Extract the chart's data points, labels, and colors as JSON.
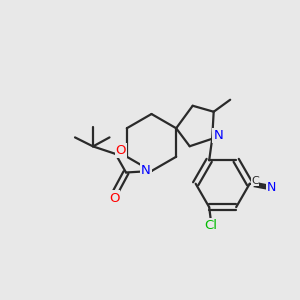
{
  "bg_color": "#e8e8e8",
  "bond_color": "#2a2a2a",
  "bond_width": 1.6,
  "atom_colors": {
    "N": "#0000ff",
    "O": "#ff0000",
    "Cl": "#00bb00",
    "C": "#2a2a2a"
  },
  "font_size_atom": 9.5,
  "layout": {
    "xlim": [
      0,
      10
    ],
    "ylim": [
      0,
      10
    ]
  }
}
